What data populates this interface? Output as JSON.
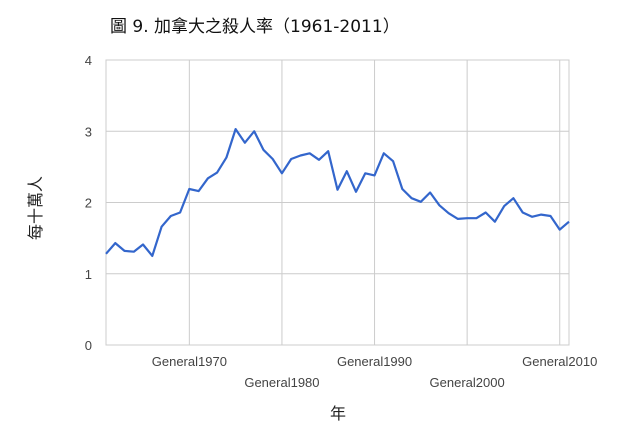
{
  "chart_data": {
    "type": "line",
    "title": "圖 9. 加拿大之殺人率（1961-2011）",
    "xlabel": "年",
    "ylabel": "每十萬人",
    "ylim": [
      0,
      4
    ],
    "yticks": [
      "0",
      "1",
      "2",
      "3",
      "4"
    ],
    "xtick_labels": [
      "General1970",
      "General1980",
      "General1990",
      "General2000",
      "General2010"
    ],
    "grid": true,
    "line_color": "#3366cc",
    "x": [
      1961,
      1962,
      1963,
      1964,
      1965,
      1966,
      1967,
      1968,
      1969,
      1970,
      1971,
      1972,
      1973,
      1974,
      1975,
      1976,
      1977,
      1978,
      1979,
      1980,
      1981,
      1982,
      1983,
      1984,
      1985,
      1986,
      1987,
      1988,
      1989,
      1990,
      1991,
      1992,
      1993,
      1994,
      1995,
      1996,
      1997,
      1998,
      1999,
      2000,
      2001,
      2002,
      2003,
      2004,
      2005,
      2006,
      2007,
      2008,
      2009,
      2010,
      2011
    ],
    "values": [
      1.28,
      1.43,
      1.32,
      1.31,
      1.41,
      1.25,
      1.66,
      1.81,
      1.86,
      2.19,
      2.16,
      2.34,
      2.42,
      2.63,
      3.03,
      2.84,
      3.0,
      2.74,
      2.61,
      2.41,
      2.61,
      2.66,
      2.69,
      2.6,
      2.72,
      2.18,
      2.44,
      2.15,
      2.41,
      2.38,
      2.69,
      2.58,
      2.19,
      2.06,
      2.01,
      2.14,
      1.96,
      1.85,
      1.77,
      1.78,
      1.78,
      1.86,
      1.73,
      1.95,
      2.06,
      1.86,
      1.8,
      1.83,
      1.81,
      1.62,
      1.73
    ]
  }
}
